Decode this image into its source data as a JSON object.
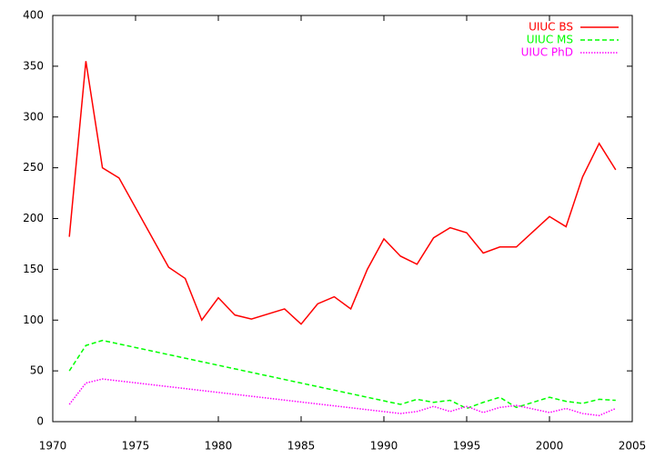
{
  "chart_data": {
    "type": "line",
    "xlim": [
      1970,
      2005
    ],
    "xticks": [
      1970,
      1975,
      1980,
      1985,
      1990,
      1995,
      2000,
      2005
    ],
    "ylim": [
      0,
      400
    ],
    "yticks": [
      0,
      50,
      100,
      150,
      200,
      250,
      300,
      350,
      400
    ],
    "grid": false,
    "legend": "top-right",
    "series": [
      {
        "name": "UIUC BS",
        "color": "#ff0000",
        "line_style": "solid",
        "x": [
          1971,
          1972,
          1973,
          1974,
          1977,
          1978,
          1979,
          1980,
          1981,
          1982,
          1984,
          1985,
          1986,
          1987,
          1988,
          1989,
          1990,
          1991,
          1992,
          1993,
          1994,
          1995,
          1996,
          1997,
          1998,
          2000,
          2001,
          2002,
          2003,
          2004
        ],
        "values": [
          182,
          355,
          250,
          240,
          152,
          141,
          100,
          122,
          105,
          101,
          111,
          96,
          116,
          123,
          111,
          150,
          180,
          163,
          155,
          181,
          191,
          186,
          166,
          172,
          172,
          202,
          192,
          241,
          274,
          248
        ]
      },
      {
        "name": "UIUC MS",
        "color": "#00ff00",
        "line_style": "dashed",
        "x": [
          1971,
          1972,
          1973,
          1991,
          1992,
          1993,
          1994,
          1995,
          1996,
          1997,
          1998,
          2000,
          2001,
          2002,
          2003,
          2004
        ],
        "values": [
          50,
          75,
          80,
          17,
          22,
          19,
          21,
          13,
          19,
          24,
          14,
          24,
          20,
          18,
          22,
          21
        ]
      },
      {
        "name": "UIUC PhD",
        "color": "#ff00ff",
        "line_style": "dotted",
        "x": [
          1971,
          1972,
          1973,
          1991,
          1992,
          1993,
          1994,
          1995,
          1996,
          1997,
          1998,
          2000,
          2001,
          2002,
          2003,
          2004
        ],
        "values": [
          17,
          38,
          42,
          8,
          10,
          15,
          10,
          15,
          9,
          14,
          16,
          9,
          13,
          8,
          6,
          13
        ]
      }
    ]
  }
}
